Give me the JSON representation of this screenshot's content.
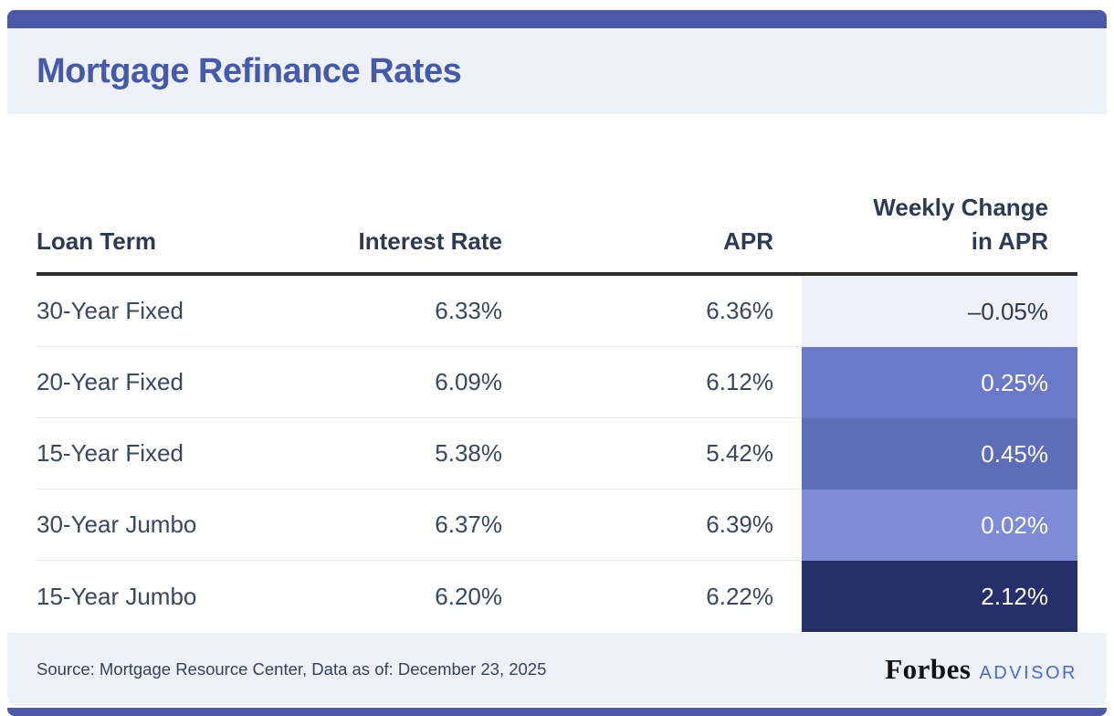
{
  "header": {
    "title": "Mortgage Refinance Rates"
  },
  "table": {
    "headers": {
      "loan_term": "Loan Term",
      "interest_rate": "Interest Rate",
      "apr": "APR",
      "weekly_change_line1": "Weekly Change",
      "weekly_change_line2": "in APR"
    },
    "rows": [
      {
        "term": "30-Year Fixed",
        "rate": "6.33%",
        "apr": "6.36%",
        "change": "–0.05%",
        "change_bg": "#eff2fb",
        "change_fg": "#2e3a52"
      },
      {
        "term": "20-Year Fixed",
        "rate": "6.09%",
        "apr": "6.12%",
        "change": "0.25%",
        "change_bg": "#6b79c9",
        "change_fg": "#ffffff"
      },
      {
        "term": "15-Year Fixed",
        "rate": "5.38%",
        "apr": "5.42%",
        "change": "0.45%",
        "change_bg": "#5e6db8",
        "change_fg": "#ffffff"
      },
      {
        "term": "30-Year Jumbo",
        "rate": "6.37%",
        "apr": "6.39%",
        "change": "0.02%",
        "change_bg": "#7e8bd7",
        "change_fg": "#ffffff"
      },
      {
        "term": "15-Year Jumbo",
        "rate": "6.20%",
        "apr": "6.22%",
        "change": "2.12%",
        "change_bg": "#262f6a",
        "change_fg": "#ffffff"
      }
    ]
  },
  "footer": {
    "source": "Source: Mortgage Resource Center, Data as of: December 23, 2025",
    "brand": "Forbes",
    "brand_suffix": "ADVISOR"
  },
  "colors": {
    "accent_bar": "#4b57a7",
    "title": "#4759aa",
    "band_bg": "#edf1f8",
    "header_text": "#2c3a54",
    "cell_text": "#3a4760",
    "header_rule": "#2e2e2e",
    "row_rule": "#e8e8e8",
    "forbes_black": "#121212",
    "advisor_blue": "#4a68d9"
  },
  "chart_data": {
    "type": "table",
    "title": "Mortgage Refinance Rates",
    "columns": [
      "Loan Term",
      "Interest Rate",
      "APR",
      "Weekly Change in APR"
    ],
    "rows": [
      [
        "30-Year Fixed",
        "6.33%",
        "6.36%",
        "-0.05%"
      ],
      [
        "20-Year Fixed",
        "6.09%",
        "6.12%",
        "0.25%"
      ],
      [
        "15-Year Fixed",
        "5.38%",
        "5.42%",
        "0.45%"
      ],
      [
        "30-Year Jumbo",
        "6.37%",
        "6.39%",
        "0.02%"
      ],
      [
        "15-Year Jumbo",
        "6.20%",
        "6.22%",
        "2.12%"
      ]
    ],
    "notes": "Weekly Change in APR cells are color-coded by change magnitude (light lavender for negative, medium blues for small positive, dark navy for largest change)",
    "source": "Source: Mortgage Resource Center, Data as of: December 23, 2025"
  }
}
